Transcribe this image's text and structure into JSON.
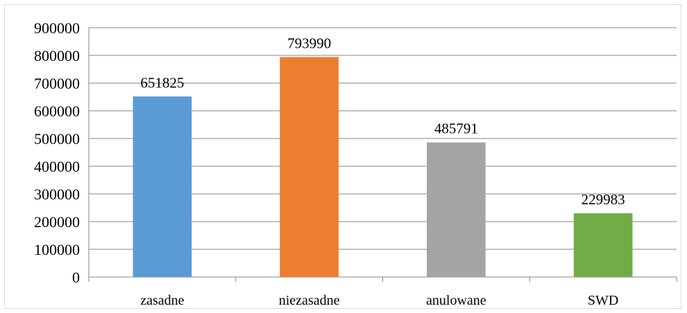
{
  "chart_data": {
    "type": "bar",
    "categories": [
      "zasadne",
      "niezasadne",
      "anulowane",
      "SWD"
    ],
    "values": [
      651825,
      793990,
      485791,
      229983
    ],
    "data_labels": [
      "651825",
      "793990",
      "485791",
      "229983"
    ],
    "colors": [
      "#5b9bd5",
      "#ed7d31",
      "#a5a5a5",
      "#70ad47"
    ],
    "ylim": [
      0,
      900000
    ],
    "yticks": [
      0,
      100000,
      200000,
      300000,
      400000,
      500000,
      600000,
      700000,
      800000,
      900000
    ],
    "ytick_labels": [
      "0",
      "100000",
      "200000",
      "300000",
      "400000",
      "500000",
      "600000",
      "700000",
      "800000",
      "900000"
    ],
    "grid": true,
    "title": "",
    "xlabel": "",
    "ylabel": ""
  }
}
